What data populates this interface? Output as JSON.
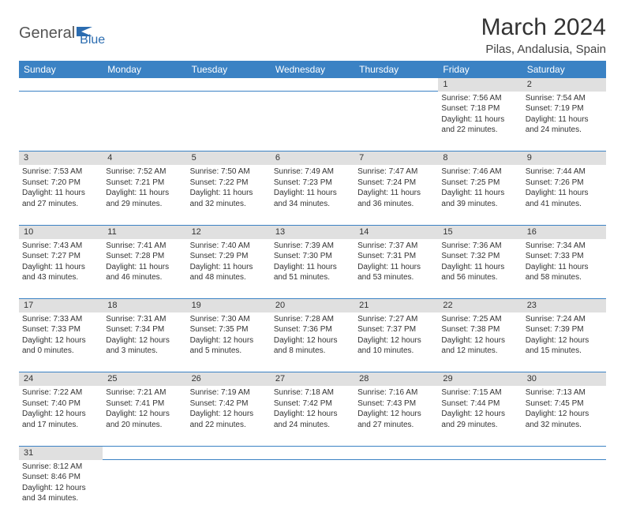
{
  "brand": {
    "part1": "General",
    "part2": "Blue"
  },
  "page": {
    "title": "March 2024",
    "location": "Pilas, Andalusia, Spain"
  },
  "colors": {
    "header_bg": "#3b82c4",
    "daynum_bg": "#e0e0e0",
    "rule": "#3b82c4",
    "brand_blue": "#2b6cb0"
  },
  "weekdays": [
    "Sunday",
    "Monday",
    "Tuesday",
    "Wednesday",
    "Thursday",
    "Friday",
    "Saturday"
  ],
  "weeks": [
    {
      "nums": [
        "",
        "",
        "",
        "",
        "",
        "1",
        "2"
      ],
      "cells": [
        null,
        null,
        null,
        null,
        null,
        {
          "sunrise": "Sunrise: 7:56 AM",
          "sunset": "Sunset: 7:18 PM",
          "day1": "Daylight: 11 hours",
          "day2": "and 22 minutes."
        },
        {
          "sunrise": "Sunrise: 7:54 AM",
          "sunset": "Sunset: 7:19 PM",
          "day1": "Daylight: 11 hours",
          "day2": "and 24 minutes."
        }
      ]
    },
    {
      "nums": [
        "3",
        "4",
        "5",
        "6",
        "7",
        "8",
        "9"
      ],
      "cells": [
        {
          "sunrise": "Sunrise: 7:53 AM",
          "sunset": "Sunset: 7:20 PM",
          "day1": "Daylight: 11 hours",
          "day2": "and 27 minutes."
        },
        {
          "sunrise": "Sunrise: 7:52 AM",
          "sunset": "Sunset: 7:21 PM",
          "day1": "Daylight: 11 hours",
          "day2": "and 29 minutes."
        },
        {
          "sunrise": "Sunrise: 7:50 AM",
          "sunset": "Sunset: 7:22 PM",
          "day1": "Daylight: 11 hours",
          "day2": "and 32 minutes."
        },
        {
          "sunrise": "Sunrise: 7:49 AM",
          "sunset": "Sunset: 7:23 PM",
          "day1": "Daylight: 11 hours",
          "day2": "and 34 minutes."
        },
        {
          "sunrise": "Sunrise: 7:47 AM",
          "sunset": "Sunset: 7:24 PM",
          "day1": "Daylight: 11 hours",
          "day2": "and 36 minutes."
        },
        {
          "sunrise": "Sunrise: 7:46 AM",
          "sunset": "Sunset: 7:25 PM",
          "day1": "Daylight: 11 hours",
          "day2": "and 39 minutes."
        },
        {
          "sunrise": "Sunrise: 7:44 AM",
          "sunset": "Sunset: 7:26 PM",
          "day1": "Daylight: 11 hours",
          "day2": "and 41 minutes."
        }
      ]
    },
    {
      "nums": [
        "10",
        "11",
        "12",
        "13",
        "14",
        "15",
        "16"
      ],
      "cells": [
        {
          "sunrise": "Sunrise: 7:43 AM",
          "sunset": "Sunset: 7:27 PM",
          "day1": "Daylight: 11 hours",
          "day2": "and 43 minutes."
        },
        {
          "sunrise": "Sunrise: 7:41 AM",
          "sunset": "Sunset: 7:28 PM",
          "day1": "Daylight: 11 hours",
          "day2": "and 46 minutes."
        },
        {
          "sunrise": "Sunrise: 7:40 AM",
          "sunset": "Sunset: 7:29 PM",
          "day1": "Daylight: 11 hours",
          "day2": "and 48 minutes."
        },
        {
          "sunrise": "Sunrise: 7:39 AM",
          "sunset": "Sunset: 7:30 PM",
          "day1": "Daylight: 11 hours",
          "day2": "and 51 minutes."
        },
        {
          "sunrise": "Sunrise: 7:37 AM",
          "sunset": "Sunset: 7:31 PM",
          "day1": "Daylight: 11 hours",
          "day2": "and 53 minutes."
        },
        {
          "sunrise": "Sunrise: 7:36 AM",
          "sunset": "Sunset: 7:32 PM",
          "day1": "Daylight: 11 hours",
          "day2": "and 56 minutes."
        },
        {
          "sunrise": "Sunrise: 7:34 AM",
          "sunset": "Sunset: 7:33 PM",
          "day1": "Daylight: 11 hours",
          "day2": "and 58 minutes."
        }
      ]
    },
    {
      "nums": [
        "17",
        "18",
        "19",
        "20",
        "21",
        "22",
        "23"
      ],
      "cells": [
        {
          "sunrise": "Sunrise: 7:33 AM",
          "sunset": "Sunset: 7:33 PM",
          "day1": "Daylight: 12 hours",
          "day2": "and 0 minutes."
        },
        {
          "sunrise": "Sunrise: 7:31 AM",
          "sunset": "Sunset: 7:34 PM",
          "day1": "Daylight: 12 hours",
          "day2": "and 3 minutes."
        },
        {
          "sunrise": "Sunrise: 7:30 AM",
          "sunset": "Sunset: 7:35 PM",
          "day1": "Daylight: 12 hours",
          "day2": "and 5 minutes."
        },
        {
          "sunrise": "Sunrise: 7:28 AM",
          "sunset": "Sunset: 7:36 PM",
          "day1": "Daylight: 12 hours",
          "day2": "and 8 minutes."
        },
        {
          "sunrise": "Sunrise: 7:27 AM",
          "sunset": "Sunset: 7:37 PM",
          "day1": "Daylight: 12 hours",
          "day2": "and 10 minutes."
        },
        {
          "sunrise": "Sunrise: 7:25 AM",
          "sunset": "Sunset: 7:38 PM",
          "day1": "Daylight: 12 hours",
          "day2": "and 12 minutes."
        },
        {
          "sunrise": "Sunrise: 7:24 AM",
          "sunset": "Sunset: 7:39 PM",
          "day1": "Daylight: 12 hours",
          "day2": "and 15 minutes."
        }
      ]
    },
    {
      "nums": [
        "24",
        "25",
        "26",
        "27",
        "28",
        "29",
        "30"
      ],
      "cells": [
        {
          "sunrise": "Sunrise: 7:22 AM",
          "sunset": "Sunset: 7:40 PM",
          "day1": "Daylight: 12 hours",
          "day2": "and 17 minutes."
        },
        {
          "sunrise": "Sunrise: 7:21 AM",
          "sunset": "Sunset: 7:41 PM",
          "day1": "Daylight: 12 hours",
          "day2": "and 20 minutes."
        },
        {
          "sunrise": "Sunrise: 7:19 AM",
          "sunset": "Sunset: 7:42 PM",
          "day1": "Daylight: 12 hours",
          "day2": "and 22 minutes."
        },
        {
          "sunrise": "Sunrise: 7:18 AM",
          "sunset": "Sunset: 7:42 PM",
          "day1": "Daylight: 12 hours",
          "day2": "and 24 minutes."
        },
        {
          "sunrise": "Sunrise: 7:16 AM",
          "sunset": "Sunset: 7:43 PM",
          "day1": "Daylight: 12 hours",
          "day2": "and 27 minutes."
        },
        {
          "sunrise": "Sunrise: 7:15 AM",
          "sunset": "Sunset: 7:44 PM",
          "day1": "Daylight: 12 hours",
          "day2": "and 29 minutes."
        },
        {
          "sunrise": "Sunrise: 7:13 AM",
          "sunset": "Sunset: 7:45 PM",
          "day1": "Daylight: 12 hours",
          "day2": "and 32 minutes."
        }
      ]
    },
    {
      "nums": [
        "31",
        "",
        "",
        "",
        "",
        "",
        ""
      ],
      "cells": [
        {
          "sunrise": "Sunrise: 8:12 AM",
          "sunset": "Sunset: 8:46 PM",
          "day1": "Daylight: 12 hours",
          "day2": "and 34 minutes."
        },
        null,
        null,
        null,
        null,
        null,
        null
      ]
    }
  ]
}
